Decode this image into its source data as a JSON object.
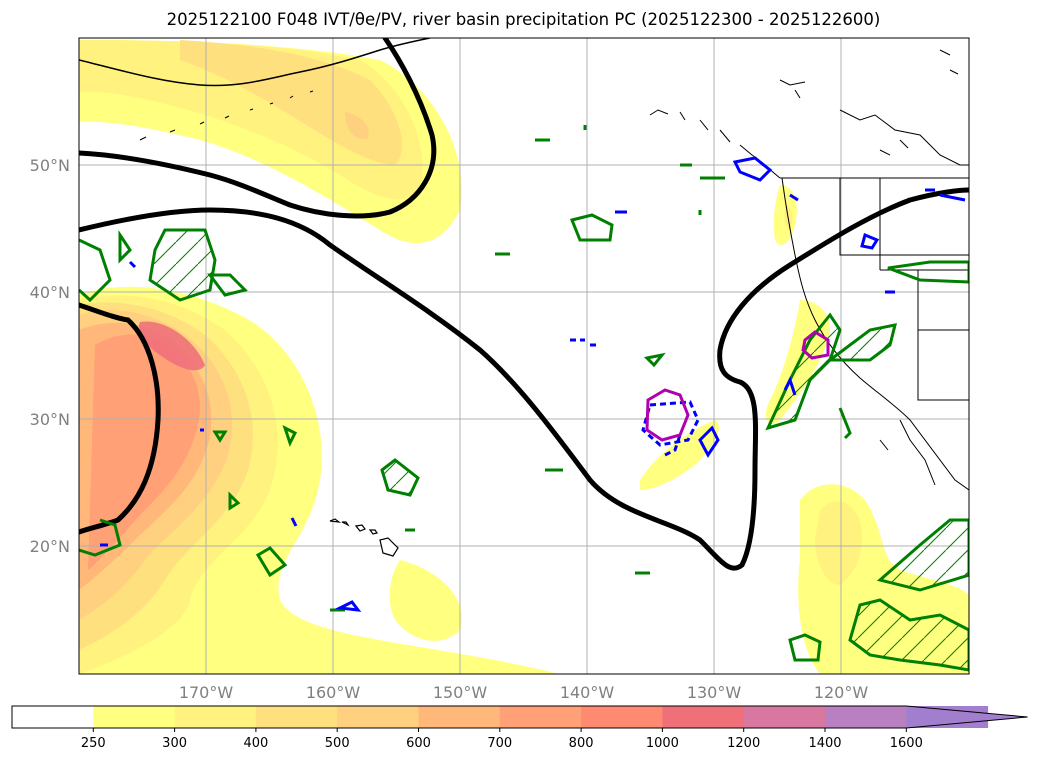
{
  "title": "2025122100 F048 IVT/θe/PV, river basin precipitation PC (2025122300 - 2025122600)",
  "map": {
    "lon_labels": [
      "170°W",
      "160°W",
      "150°W",
      "140°W",
      "130°W",
      "120°W"
    ],
    "lat_labels": [
      "50°N",
      "40°N",
      "30°N",
      "20°N"
    ],
    "label_color": "#808080"
  },
  "colorbar": {
    "ticks": [
      "250",
      "300",
      "400",
      "500",
      "600",
      "700",
      "800",
      "1000",
      "1200",
      "1400",
      "1600"
    ],
    "colors": [
      "#ffffff",
      "#ffff80",
      "#fff27f",
      "#ffe07f",
      "#ffd07f",
      "#ffb87a",
      "#ffa077",
      "#ff8a72",
      "#f0707a",
      "#d878a0",
      "#b880c0",
      "#a27fce"
    ]
  },
  "contour_colors": {
    "theta_e": "#000000",
    "pv_positive": "#008000",
    "pv_negative": "#0000ff",
    "precip_pc": "#b000b0"
  }
}
